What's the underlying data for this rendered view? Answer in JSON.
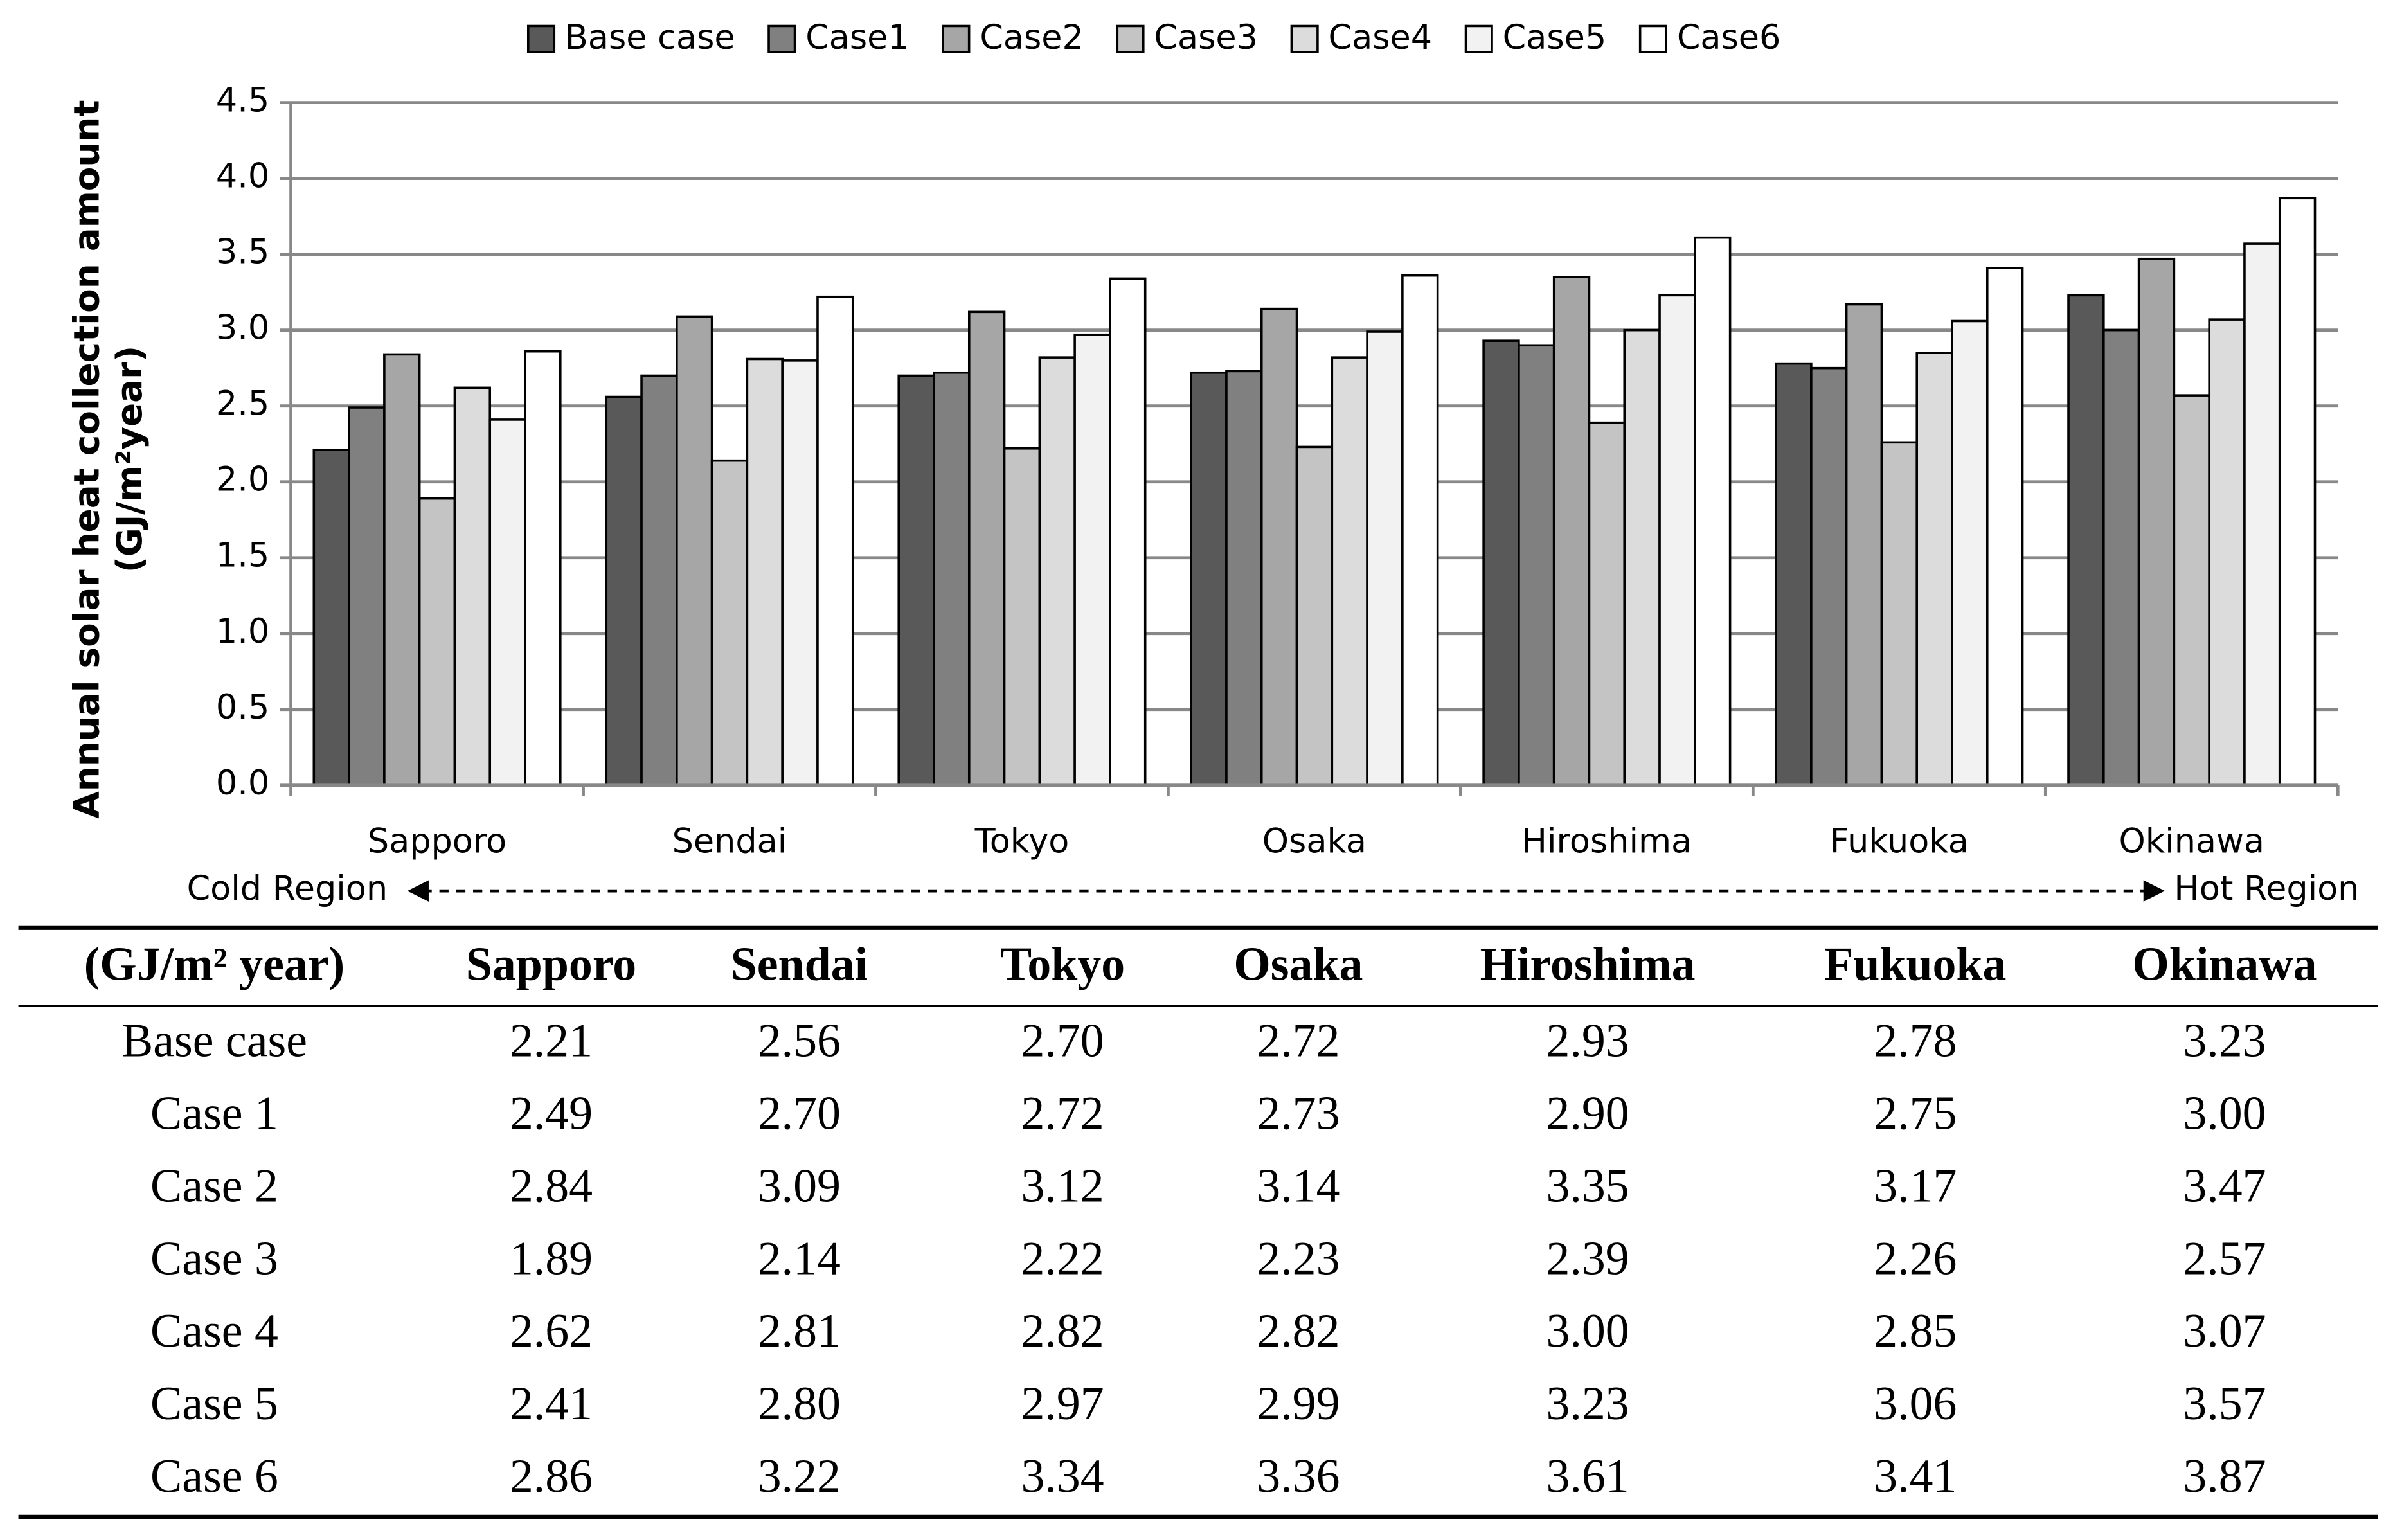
{
  "chart_data": {
    "type": "bar",
    "legend_position": "top",
    "ylabel": [
      "Annual solar heat collection amount",
      "(GJ/m²year)"
    ],
    "categories": [
      "Sapporo",
      "Sendai",
      "Tokyo",
      "Osaka",
      "Hiroshima",
      "Fukuoka",
      "Okinawa"
    ],
    "series": [
      {
        "name": "Base case",
        "color": "#595959",
        "values": [
          2.21,
          2.56,
          2.7,
          2.72,
          2.93,
          2.78,
          3.23
        ]
      },
      {
        "name": "Case1",
        "color": "#808080",
        "values": [
          2.49,
          2.7,
          2.72,
          2.73,
          2.9,
          2.75,
          3.0
        ]
      },
      {
        "name": "Case2",
        "color": "#a6a6a6",
        "values": [
          2.84,
          3.09,
          3.12,
          3.14,
          3.35,
          3.17,
          3.47
        ]
      },
      {
        "name": "Case3",
        "color": "#c4c4c4",
        "values": [
          1.89,
          2.14,
          2.22,
          2.23,
          2.39,
          2.26,
          2.57
        ]
      },
      {
        "name": "Case4",
        "color": "#dcdcdc",
        "values": [
          2.62,
          2.81,
          2.82,
          2.82,
          3.0,
          2.85,
          3.07
        ]
      },
      {
        "name": "Case5",
        "color": "#f2f2f2",
        "values": [
          2.41,
          2.8,
          2.97,
          2.99,
          3.23,
          3.06,
          3.57
        ]
      },
      {
        "name": "Case6",
        "color": "#ffffff",
        "values": [
          2.86,
          3.22,
          3.34,
          3.36,
          3.61,
          3.41,
          3.87
        ]
      }
    ],
    "ylim": [
      0,
      4.5
    ],
    "yticks": [
      {
        "value": 0,
        "label": "0.0"
      },
      0.5,
      {
        "value": 1,
        "label": "1.0"
      },
      1.5,
      {
        "value": 2,
        "label": "2.0"
      },
      2.5,
      {
        "value": 3,
        "label": "3.0"
      },
      3.5,
      {
        "value": 4,
        "label": "4.0"
      },
      4.5
    ],
    "grid": true,
    "annotations": [
      "Cold Region",
      "Hot Region"
    ]
  },
  "table": {
    "columns": [
      "(GJ/m² year)",
      "Sapporo",
      "Sendai",
      "Tokyo",
      "Osaka",
      "Hiroshima",
      "Fukuoka",
      "Okinawa"
    ],
    "rows": [
      [
        "Base case",
        "2.21",
        "2.56",
        "2.70",
        "2.72",
        "2.93",
        "2.78",
        "3.23"
      ],
      [
        "Case 1",
        "2.49",
        "2.70",
        "2.72",
        "2.73",
        "2.90",
        "2.75",
        "3.00"
      ],
      [
        "Case 2",
        "2.84",
        "3.09",
        "3.12",
        "3.14",
        "3.35",
        "3.17",
        "3.47"
      ],
      [
        "Case 3",
        "1.89",
        "2.14",
        "2.22",
        "2.23",
        "2.39",
        "2.26",
        "2.57"
      ],
      [
        "Case 4",
        "2.62",
        "2.81",
        "2.82",
        "2.82",
        "3.00",
        "2.85",
        "3.07"
      ],
      [
        "Case 5",
        "2.41",
        "2.80",
        "2.97",
        "2.99",
        "3.23",
        "3.06",
        "3.57"
      ],
      [
        "Case 6",
        "2.86",
        "3.22",
        "3.34",
        "3.36",
        "3.61",
        "3.41",
        "3.87"
      ]
    ]
  }
}
